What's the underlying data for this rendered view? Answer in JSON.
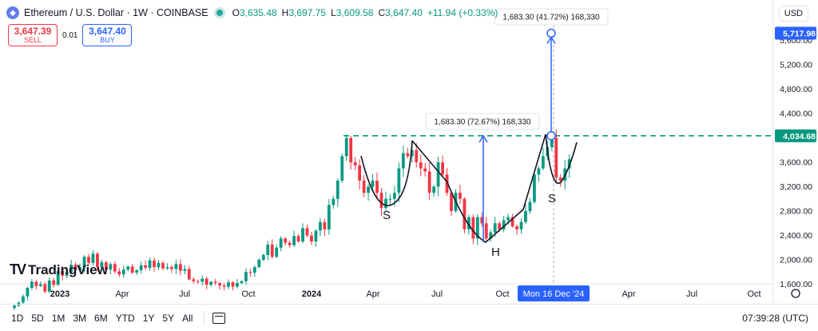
{
  "header": {
    "symbol_title": "Ethereum / U.S. Dollar · 1W · COINBASE",
    "ohlc": [
      {
        "key": "O",
        "value": "3,635.48"
      },
      {
        "key": "H",
        "value": "3,697.75"
      },
      {
        "key": "L",
        "value": "3,609.58"
      },
      {
        "key": "C",
        "value": "3,647.40"
      }
    ],
    "change": "+11.94 (+0.33%)"
  },
  "trade": {
    "sell_price": "3,647.39",
    "sell_label": "SELL",
    "spread": "0.01",
    "buy_price": "3,647.40",
    "buy_label": "BUY"
  },
  "currency": "USD",
  "logo_text": "TradingView",
  "time_ranges": [
    "1D",
    "5D",
    "1M",
    "3M",
    "6M",
    "YTD",
    "1Y",
    "5Y",
    "All"
  ],
  "clock": "07:39:28 (UTC)",
  "colors": {
    "up": "#089981",
    "down": "#f23645",
    "accent": "#2962ff",
    "level": "#089981"
  },
  "chart_data": {
    "type": "candlestick",
    "interval": "1W",
    "y_ticks": [
      1600,
      2000,
      2400,
      2800,
      3200,
      3600,
      4000,
      4400,
      4800,
      5200,
      5600
    ],
    "y_tick_labels": [
      "1,600.00",
      "2,000.00",
      "2,400.00",
      "2,800.00",
      "3,200.00",
      "3,600.00",
      "4,000.00",
      "4,400.00",
      "4,800.00",
      "5,200.00",
      "5,600.00"
    ],
    "ylim": [
      1500,
      6100
    ],
    "x_ticks": [
      "2023",
      "Apr",
      "Jul",
      "Oct",
      "2024",
      "Apr",
      "Jul",
      "Oct",
      "Mon 16 Dec '24",
      "Apr",
      "Jul",
      "Oct"
    ],
    "highlighted_x": "Mon 16 Dec '24",
    "price_labels": [
      {
        "value": 5717.98,
        "text": "5,717.98",
        "color": "#2962ff"
      },
      {
        "value": 4034.68,
        "text": "4,034.68",
        "color": "#089981"
      }
    ],
    "closes": [
      1250,
      1300,
      1400,
      1540,
      1640,
      1570,
      1600,
      1480,
      1660,
      1590,
      1820,
      1740,
      1800,
      1920,
      1830,
      1880,
      2050,
      1950,
      2100,
      1880,
      1960,
      1840,
      1930,
      1810,
      1760,
      1840,
      1890,
      1790,
      1830,
      1910,
      1870,
      1990,
      1880,
      1950,
      1860,
      1880,
      1850,
      1930,
      1820,
      1850,
      1680,
      1650,
      1640,
      1690,
      1590,
      1640,
      1620,
      1580,
      1560,
      1630,
      1560,
      1620,
      1650,
      1800,
      1790,
      1880,
      2000,
      2080,
      2250,
      2050,
      2200,
      2350,
      2280,
      2240,
      2390,
      2300,
      2520,
      2400,
      2300,
      2480,
      2620,
      2500,
      2900,
      3000,
      3300,
      3700,
      4000,
      3600,
      3550,
      3300,
      3100,
      3200,
      3300,
      3100,
      2850,
      3000,
      3000,
      3100,
      3500,
      3750,
      3700,
      3800,
      3600,
      3500,
      3450,
      3100,
      3200,
      3600,
      3400,
      3100,
      2800,
      3100,
      3000,
      2500,
      2700,
      2350,
      2700,
      2600,
      2350,
      2450,
      2600,
      2500,
      2650,
      2700,
      2550,
      2500,
      2620,
      2800,
      2950,
      3400,
      3500,
      3700,
      3850,
      4000,
      3350,
      3300,
      3500,
      3650
    ],
    "pattern_labels": [
      "S",
      "H",
      "S"
    ],
    "measurements": [
      {
        "text": "1,683.30 (72.67%) 168,330"
      },
      {
        "text": "1,683.30 (41.72%) 168,330"
      }
    ]
  }
}
